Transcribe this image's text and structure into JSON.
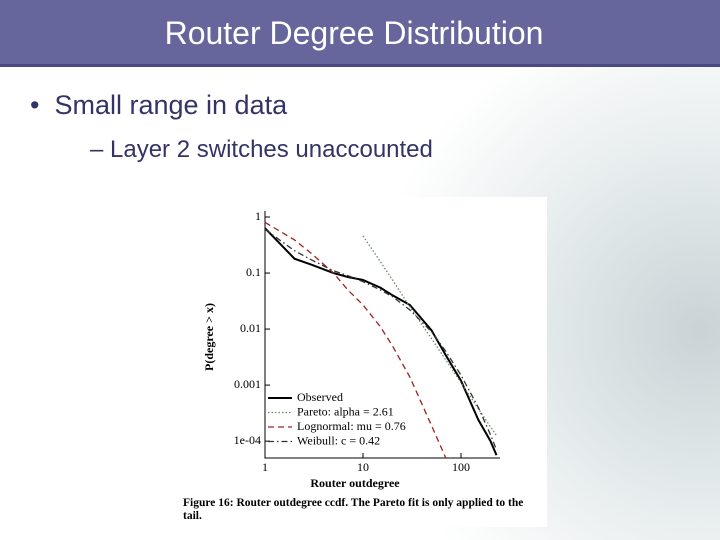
{
  "header": {
    "title": "Router Degree Distribution"
  },
  "bullets": [
    {
      "text": "Small range in data",
      "children": [
        {
          "text": "Layer 2 switches unaccounted"
        }
      ]
    }
  ],
  "chart_data": {
    "type": "line",
    "xlabel": "Router outdegree",
    "ylabel": "P(degree > x)",
    "caption": "Figure 16: Router outdegree ccdf. The Pareto fit is only applied to the tail.",
    "xscale": "log",
    "yscale": "log",
    "xlim": [
      1,
      250
    ],
    "ylim": [
      5e-05,
      1
    ],
    "xticks": [
      1,
      10,
      100
    ],
    "yticks": [
      1,
      0.1,
      0.01,
      0.001,
      {
        "value": 0.0001,
        "label": "1e-04"
      }
    ],
    "legend": "lower left",
    "x": [
      1,
      2,
      3,
      5,
      7,
      10,
      15,
      20,
      30,
      50,
      70,
      100,
      150,
      200,
      230
    ],
    "series": [
      {
        "name": "Observed",
        "color": "#000000",
        "style": "solid",
        "values": [
          0.63,
          0.18,
          0.14,
          0.1,
          0.085,
          0.075,
          0.055,
          0.04,
          0.027,
          0.0095,
          0.0034,
          0.0012,
          0.00024,
          0.0001,
          5.6e-05
        ]
      },
      {
        "name": "Pareto: alpha = 2.61",
        "color": "#6a8a6a",
        "style": "dotted",
        "values": [
          null,
          null,
          null,
          null,
          null,
          0.46,
          0.16,
          0.075,
          0.025,
          0.0068,
          0.0028,
          0.0011,
          0.00038,
          0.00018,
          0.000125
        ]
      },
      {
        "name": "Lognormal: mu = 0.76",
        "color": "#a02020",
        "style": "dashed",
        "values": [
          0.8,
          0.39,
          0.22,
          0.1,
          0.05,
          0.027,
          0.011,
          0.005,
          0.0014,
          0.00019,
          5e-05,
          null,
          null,
          null,
          null
        ]
      },
      {
        "name": "Weibull: c = 0.42",
        "color": "#333333",
        "style": "dashdot",
        "values": [
          0.6,
          0.25,
          0.17,
          0.11,
          0.09,
          0.07,
          0.05,
          0.038,
          0.022,
          0.009,
          0.004,
          0.0015,
          0.0004,
          0.00013,
          7e-05
        ]
      }
    ]
  }
}
